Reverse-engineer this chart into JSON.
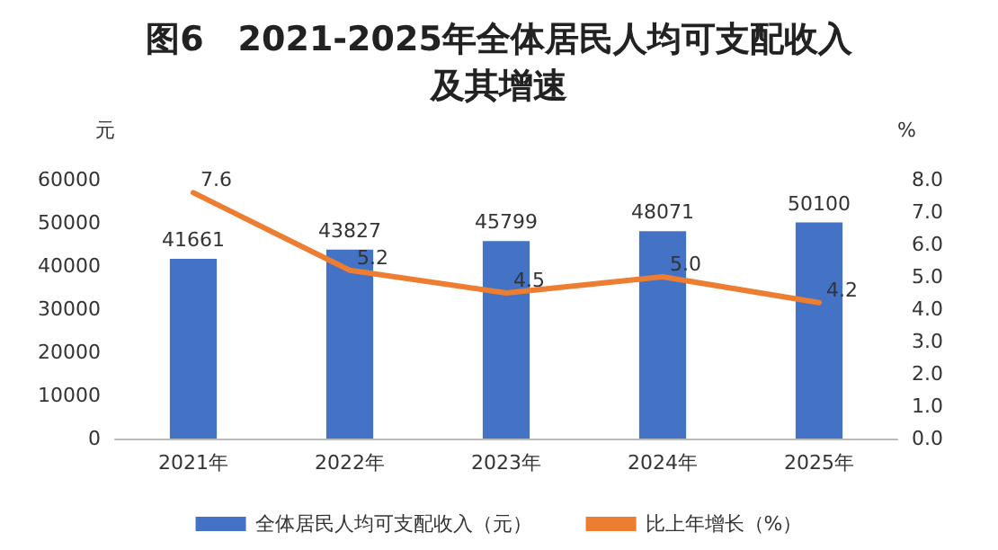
{
  "chart_data": {
    "type": "bar",
    "title": "图6　2021-2025年全体居民人均可支配收入及其增速",
    "ylabel": "元",
    "y2label": "%",
    "categories": [
      "2021年",
      "2022年",
      "2023年",
      "2024年",
      "2025年"
    ],
    "series": [
      {
        "name": "全体居民人均可支配收入（元）",
        "color": "#4472c4",
        "values": [
          41661,
          43827,
          45799,
          48071,
          50100
        ],
        "value_labels": [
          "41661",
          "43827",
          "45799",
          "48071",
          "50100"
        ]
      },
      {
        "name": "比上年增长（%）",
        "type": "line",
        "axis": "y2",
        "color": "#ed7d31",
        "values": [
          7.6,
          5.2,
          4.5,
          5.0,
          4.2
        ],
        "value_labels": [
          "7.6",
          "5.2",
          "4.5",
          "5.0",
          "4.2"
        ]
      }
    ],
    "ylim": [
      0,
      60000
    ],
    "yticks": [
      0,
      10000,
      20000,
      30000,
      40000,
      50000,
      60000
    ],
    "y2lim": [
      0,
      8
    ],
    "y2ticks": [
      {
        "value": 0,
        "label": "0.0"
      },
      {
        "value": 1,
        "label": "1.0"
      },
      {
        "value": 2,
        "label": "2.0"
      },
      {
        "value": 3,
        "label": "3.0"
      },
      {
        "value": 4,
        "label": "4.0"
      },
      {
        "value": 5,
        "label": "5.0"
      },
      {
        "value": 6,
        "label": "6.0"
      },
      {
        "value": 7,
        "label": "7.0"
      },
      {
        "value": 8,
        "label": "8.0"
      }
    ],
    "grid": false,
    "legend": "bottom",
    "marker": "none",
    "line_style": "solid"
  }
}
